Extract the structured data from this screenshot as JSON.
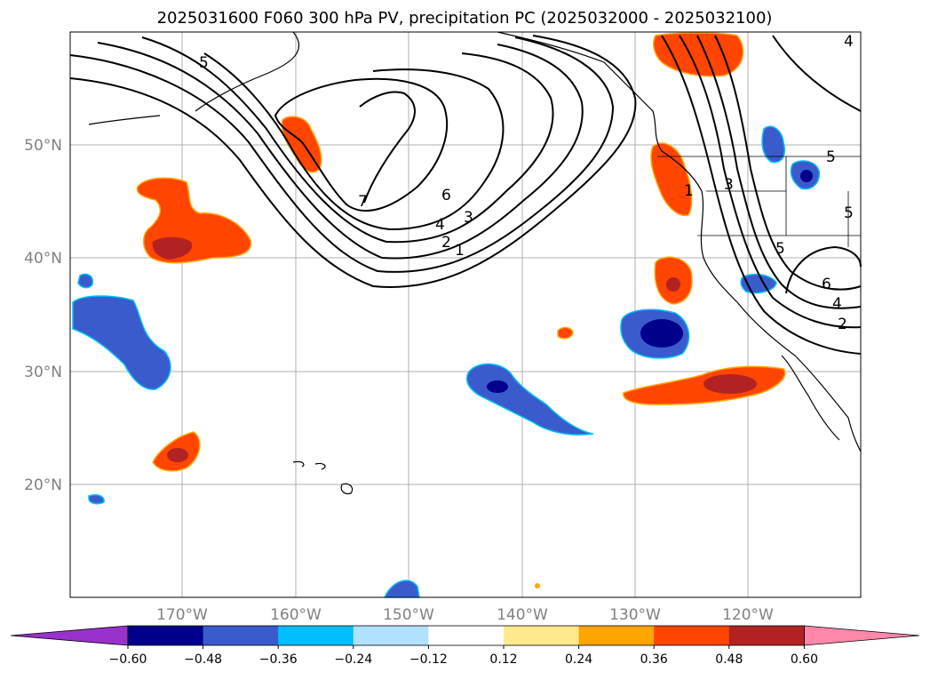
{
  "title": "2025031600 F060 300 hPa PV, precipitation PC (2025032000 - 2025032100)",
  "lat_labels": [
    "50°N",
    "40°N",
    "30°N",
    "20°N"
  ],
  "lon_labels": [
    "170°W",
    "160°W",
    "150°W",
    "140°W",
    "130°W",
    "120°W"
  ],
  "colorbar": {
    "ticks": [
      "−0.60",
      "−0.48",
      "−0.36",
      "−0.24",
      "−0.12",
      "0.12",
      "0.24",
      "0.36",
      "0.48",
      "0.60"
    ],
    "colors": [
      "#9932cc",
      "#00008b",
      "#3a5bcc",
      "#00bfff",
      "#b0e2ff",
      "#ffffff",
      "#ffe98c",
      "#ffa500",
      "#ff4500",
      "#b22222",
      "#ff88aa"
    ]
  },
  "contour_labels": [
    "5",
    "7",
    "6",
    "4",
    "3",
    "2",
    "1",
    "4",
    "1",
    "3",
    "5",
    "5",
    "5",
    "6",
    "4",
    "2"
  ],
  "legend_colors": {
    "neg_strong": "#00008b",
    "neg_mid": "#3a5bcc",
    "neg_weak": "#00bfff",
    "pos_weak": "#ffa500",
    "pos_mid": "#ff4500",
    "pos_strong": "#b22222"
  }
}
